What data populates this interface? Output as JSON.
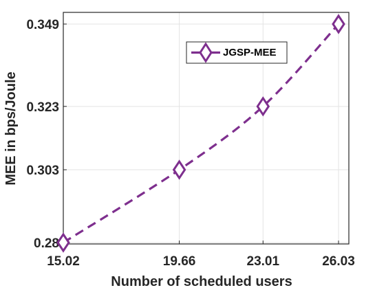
{
  "chart_data": {
    "type": "line",
    "xlabel": "Number of scheduled users",
    "ylabel": "MEE in bps/Joule",
    "x_ticks": [
      "15.02",
      "19.66",
      "23.01",
      "26.03"
    ],
    "y_ticks": [
      "0.28",
      "0.303",
      "0.323",
      "0.349"
    ],
    "xlim": [
      15.02,
      26.03
    ],
    "ylim": [
      0.28,
      0.349
    ],
    "grid": true,
    "legend_position": "top-right",
    "series": [
      {
        "name": "JGSP-MEE",
        "color": "#7E2F8E",
        "line_style": "dashed",
        "marker": "diamond",
        "x": [
          15.02,
          19.66,
          23.01,
          26.03
        ],
        "y": [
          0.28,
          0.303,
          0.323,
          0.349
        ]
      }
    ]
  }
}
